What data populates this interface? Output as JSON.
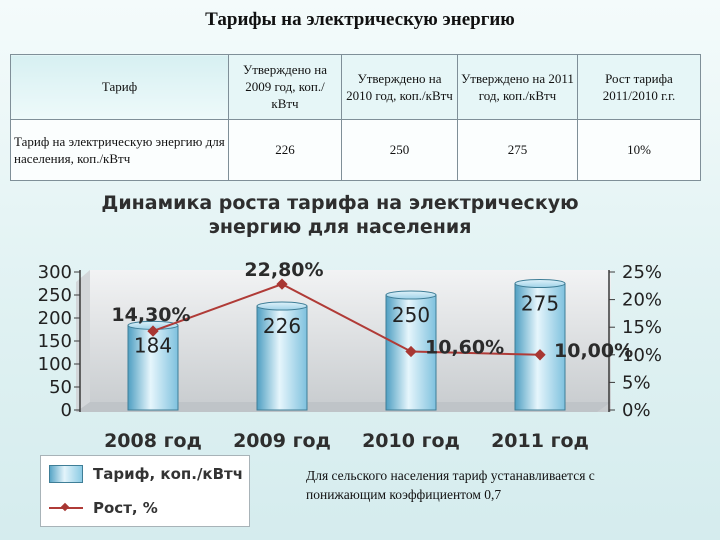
{
  "page_title": "Тарифы на электрическую энергию",
  "table": {
    "header": {
      "label": "Тариф",
      "columns": [
        "Утверждено на 2009 год, коп./кВтч",
        "Утверждено на 2010 год, коп./кВтч",
        "Утверждено на 2011 год, коп./кВтч",
        "Рост тарифа 2011/2010 г.г."
      ]
    },
    "rows": [
      {
        "label": "Тариф на электрическую энергию для населения, коп./кВтч",
        "values": [
          "226",
          "250",
          "275",
          "10%"
        ]
      }
    ]
  },
  "chart_data": {
    "type": "bar",
    "title": "Динамика роста тарифа на электрическую энергию для населения",
    "categories": [
      "2008 год",
      "2009 год",
      "2010 год",
      "2011 год"
    ],
    "series": [
      {
        "name": "Тариф, коп./кВтч",
        "type": "bar",
        "axis": "left",
        "values": [
          184,
          226,
          250,
          275
        ],
        "labels": [
          "184",
          "226",
          "250",
          "275"
        ]
      },
      {
        "name": "Рост, %",
        "type": "line",
        "axis": "right",
        "values": [
          14.3,
          22.8,
          10.6,
          10.0
        ],
        "labels": [
          "14,30%",
          "22,80%",
          "10,60%",
          "10,00%"
        ]
      }
    ],
    "y_left": {
      "min": 0,
      "max": 300,
      "ticks": [
        "0",
        "50",
        "100",
        "150",
        "200",
        "250",
        "300"
      ]
    },
    "y_right": {
      "min": 0,
      "max": 25,
      "ticks": [
        "0%",
        "5%",
        "10%",
        "15%",
        "20%",
        "25%"
      ]
    },
    "grid": false,
    "legend": "bottom-left",
    "colors": {
      "bar": "#7dc2df",
      "bar_border": "#3f7e97",
      "line": "#b03b37",
      "marker": "#a83733"
    }
  },
  "note": "Для сельского населения тариф устанавливается с понижающим коэффициентом 0,7"
}
